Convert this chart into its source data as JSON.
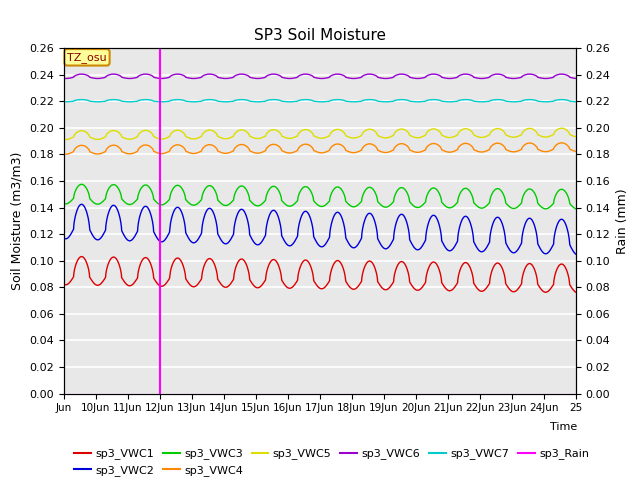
{
  "title": "SP3 Soil Moisture",
  "ylabel_left": "Soil Moisture (m3/m3)",
  "ylabel_right": "Rain (mm)",
  "xlabel": "Time",
  "xlim_days": [
    9,
    25
  ],
  "ylim": [
    0.0,
    0.26
  ],
  "x_tick_labels": [
    "Jun",
    "10Jun",
    "11Jun",
    "12Jun",
    "13Jun",
    "14Jun",
    "15Jun",
    "16Jun",
    "17Jun",
    "18Jun",
    "19Jun",
    "20Jun",
    "21Jun",
    "22Jun",
    "23Jun",
    "24Jun",
    "25"
  ],
  "x_tick_positions": [
    9,
    10,
    11,
    12,
    13,
    14,
    15,
    16,
    17,
    18,
    19,
    20,
    21,
    22,
    23,
    24,
    25
  ],
  "rain_line_x": 12,
  "tz_label": "TZ_osu",
  "tz_box_color": "#FFFF99",
  "tz_box_edge": "#CC8800",
  "series_order": [
    "sp3_VWC1",
    "sp3_VWC2",
    "sp3_VWC3",
    "sp3_VWC4",
    "sp3_VWC5",
    "sp3_VWC6",
    "sp3_VWC7"
  ],
  "series": {
    "sp3_VWC1": {
      "color": "#DD0000",
      "mean": 0.088,
      "amp": 0.013,
      "trend": -0.006,
      "phase": 0.55
    },
    "sp3_VWC2": {
      "color": "#0000DD",
      "mean": 0.124,
      "amp": 0.016,
      "trend": -0.012,
      "phase": 0.55
    },
    "sp3_VWC3": {
      "color": "#00CC00",
      "mean": 0.147,
      "amp": 0.009,
      "trend": -0.004,
      "phase": 0.55
    },
    "sp3_VWC4": {
      "color": "#FF8800",
      "mean": 0.182,
      "amp": 0.004,
      "trend": 0.002,
      "phase": 0.55
    },
    "sp3_VWC5": {
      "color": "#DDDD00",
      "mean": 0.193,
      "amp": 0.004,
      "trend": 0.002,
      "phase": 0.55
    },
    "sp3_VWC6": {
      "color": "#9900CC",
      "mean": 0.238,
      "amp": 0.002,
      "trend": 0.0,
      "phase": 0.55
    },
    "sp3_VWC7": {
      "color": "#00CCCC",
      "mean": 0.22,
      "amp": 0.001,
      "trend": 0.0,
      "phase": 0.55
    }
  },
  "rain_color": "#FF00FF",
  "background_color": "#E8E8E8",
  "grid_color": "#FFFFFF",
  "fig_facecolor": "#FFFFFF"
}
